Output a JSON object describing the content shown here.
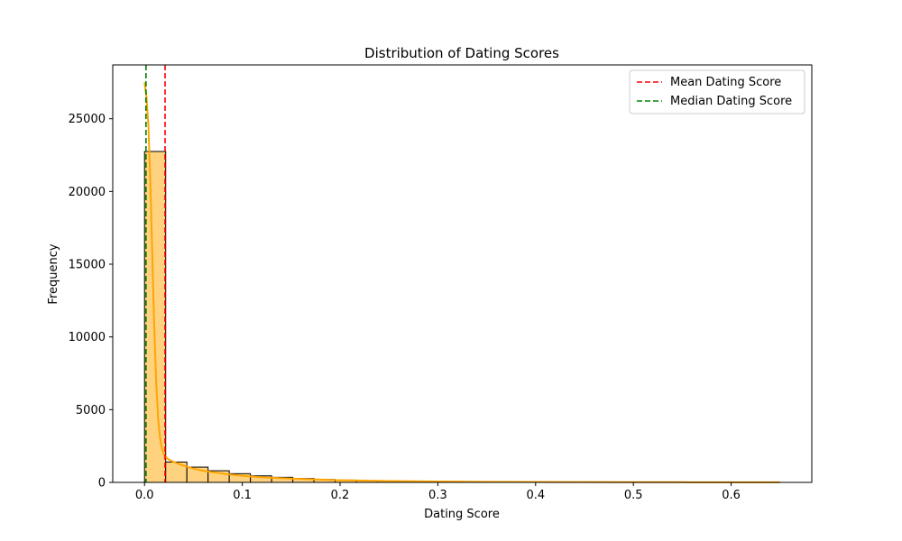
{
  "chart_data": {
    "type": "histogram",
    "title": "Distribution of Dating Scores",
    "xlabel": "Dating Score",
    "ylabel": "Frequency",
    "xlim": [
      -0.0325,
      0.6825
    ],
    "ylim": [
      0,
      28700
    ],
    "xticks": [
      0.0,
      0.1,
      0.2,
      0.3,
      0.4,
      0.5,
      0.6
    ],
    "xtick_labels": [
      "0.0",
      "0.1",
      "0.2",
      "0.3",
      "0.4",
      "0.5",
      "0.6"
    ],
    "yticks": [
      0,
      5000,
      10000,
      15000,
      20000,
      25000
    ],
    "ytick_labels": [
      "0",
      "5000",
      "10000",
      "15000",
      "20000",
      "25000"
    ],
    "bin_width": 0.02167,
    "bins": [
      {
        "x0": 0.0,
        "count": 22750
      },
      {
        "x0": 0.02167,
        "count": 1400
      },
      {
        "x0": 0.04333,
        "count": 1050
      },
      {
        "x0": 0.065,
        "count": 800
      },
      {
        "x0": 0.08667,
        "count": 600
      },
      {
        "x0": 0.10833,
        "count": 450
      },
      {
        "x0": 0.13,
        "count": 350
      },
      {
        "x0": 0.15167,
        "count": 270
      },
      {
        "x0": 0.17333,
        "count": 200
      },
      {
        "x0": 0.195,
        "count": 160
      },
      {
        "x0": 0.21667,
        "count": 120
      },
      {
        "x0": 0.23833,
        "count": 100
      },
      {
        "x0": 0.26,
        "count": 85
      },
      {
        "x0": 0.28167,
        "count": 70
      },
      {
        "x0": 0.30333,
        "count": 60
      },
      {
        "x0": 0.325,
        "count": 50
      },
      {
        "x0": 0.34667,
        "count": 45
      },
      {
        "x0": 0.36833,
        "count": 40
      },
      {
        "x0": 0.39,
        "count": 35
      },
      {
        "x0": 0.41167,
        "count": 30
      },
      {
        "x0": 0.43333,
        "count": 25
      },
      {
        "x0": 0.455,
        "count": 22
      },
      {
        "x0": 0.47667,
        "count": 20
      },
      {
        "x0": 0.49833,
        "count": 18
      },
      {
        "x0": 0.52,
        "count": 15
      },
      {
        "x0": 0.54167,
        "count": 12
      },
      {
        "x0": 0.56333,
        "count": 10
      },
      {
        "x0": 0.585,
        "count": 8
      },
      {
        "x0": 0.60667,
        "count": 6
      },
      {
        "x0": 0.62833,
        "count": 5
      }
    ],
    "kde": {
      "x": [
        0.0,
        0.002,
        0.004,
        0.006,
        0.008,
        0.01,
        0.012,
        0.014,
        0.016,
        0.018,
        0.02,
        0.024,
        0.03,
        0.04,
        0.05,
        0.06,
        0.08,
        0.1,
        0.12,
        0.15,
        0.2,
        0.25,
        0.3,
        0.35,
        0.4,
        0.45,
        0.5,
        0.55,
        0.6,
        0.65
      ],
      "y": [
        27500,
        26500,
        24500,
        20500,
        15500,
        10500,
        6800,
        4300,
        3000,
        2300,
        1900,
        1600,
        1400,
        1150,
        950,
        800,
        600,
        450,
        350,
        260,
        150,
        90,
        60,
        40,
        30,
        22,
        16,
        12,
        8,
        5
      ]
    },
    "mean": 0.021,
    "median": 0.0015,
    "legend": {
      "position": "upper-right",
      "entries": [
        {
          "label": "Mean Dating Score",
          "color": "#ff0000",
          "style": "dashed"
        },
        {
          "label": "Median Dating Score",
          "color": "#008000",
          "style": "dashed"
        }
      ]
    },
    "colors": {
      "bar_fill": "#ffd27f",
      "bar_edge": "#000000",
      "kde_line": "#ffa500",
      "mean_line": "#ff0000",
      "median_line": "#008000"
    }
  }
}
